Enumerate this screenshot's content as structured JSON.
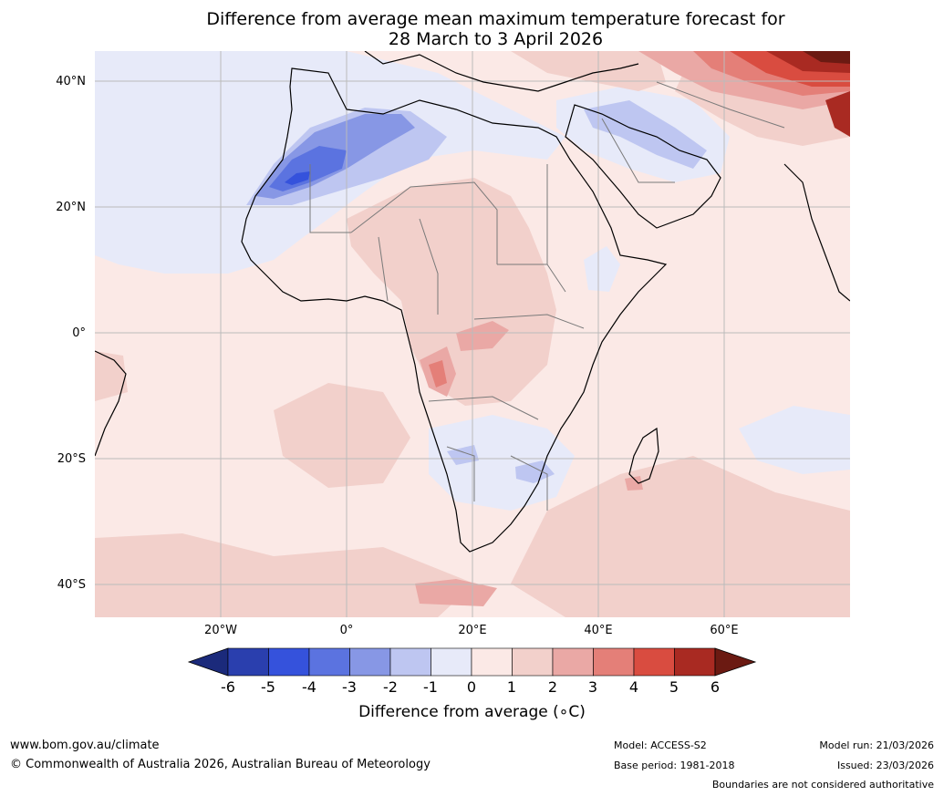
{
  "title": {
    "line1": "Difference from average mean maximum temperature forecast for",
    "line2": "28 March to 3 April 2026"
  },
  "axes": {
    "lat_labels": [
      "40°N",
      "20°N",
      "0°",
      "20°S",
      "40°S"
    ],
    "lon_labels": [
      "20°W",
      "0°",
      "20°E",
      "40°E",
      "60°E"
    ]
  },
  "colorbar": {
    "ticks": [
      "-6",
      "-5",
      "-4",
      "-3",
      "-2",
      "-1",
      "0",
      "1",
      "2",
      "3",
      "4",
      "5",
      "6"
    ],
    "colors": [
      "#1b2a7b",
      "#2a3fae",
      "#3552dc",
      "#5b73e0",
      "#8797e5",
      "#bec6f1",
      "#e7eaf9",
      "#fbe9e6",
      "#f2d0cb",
      "#eaa8a5",
      "#e47f78",
      "#d94c40",
      "#a92a22",
      "#6b1a12"
    ],
    "label": "Difference from average (∘C)"
  },
  "footer": {
    "website": "www.bom.gov.au/climate",
    "copyright": "© Commonwealth of Australia 2026, Australian Bureau of Meteorology",
    "model": "Model: ACCESS-S2",
    "base_period": "Base period: 1981-2018",
    "model_run": "Model run: 21/03/2026",
    "issued": "Issued: 23/03/2026",
    "disclaimer": "Boundaries are not considered authoritative"
  }
}
